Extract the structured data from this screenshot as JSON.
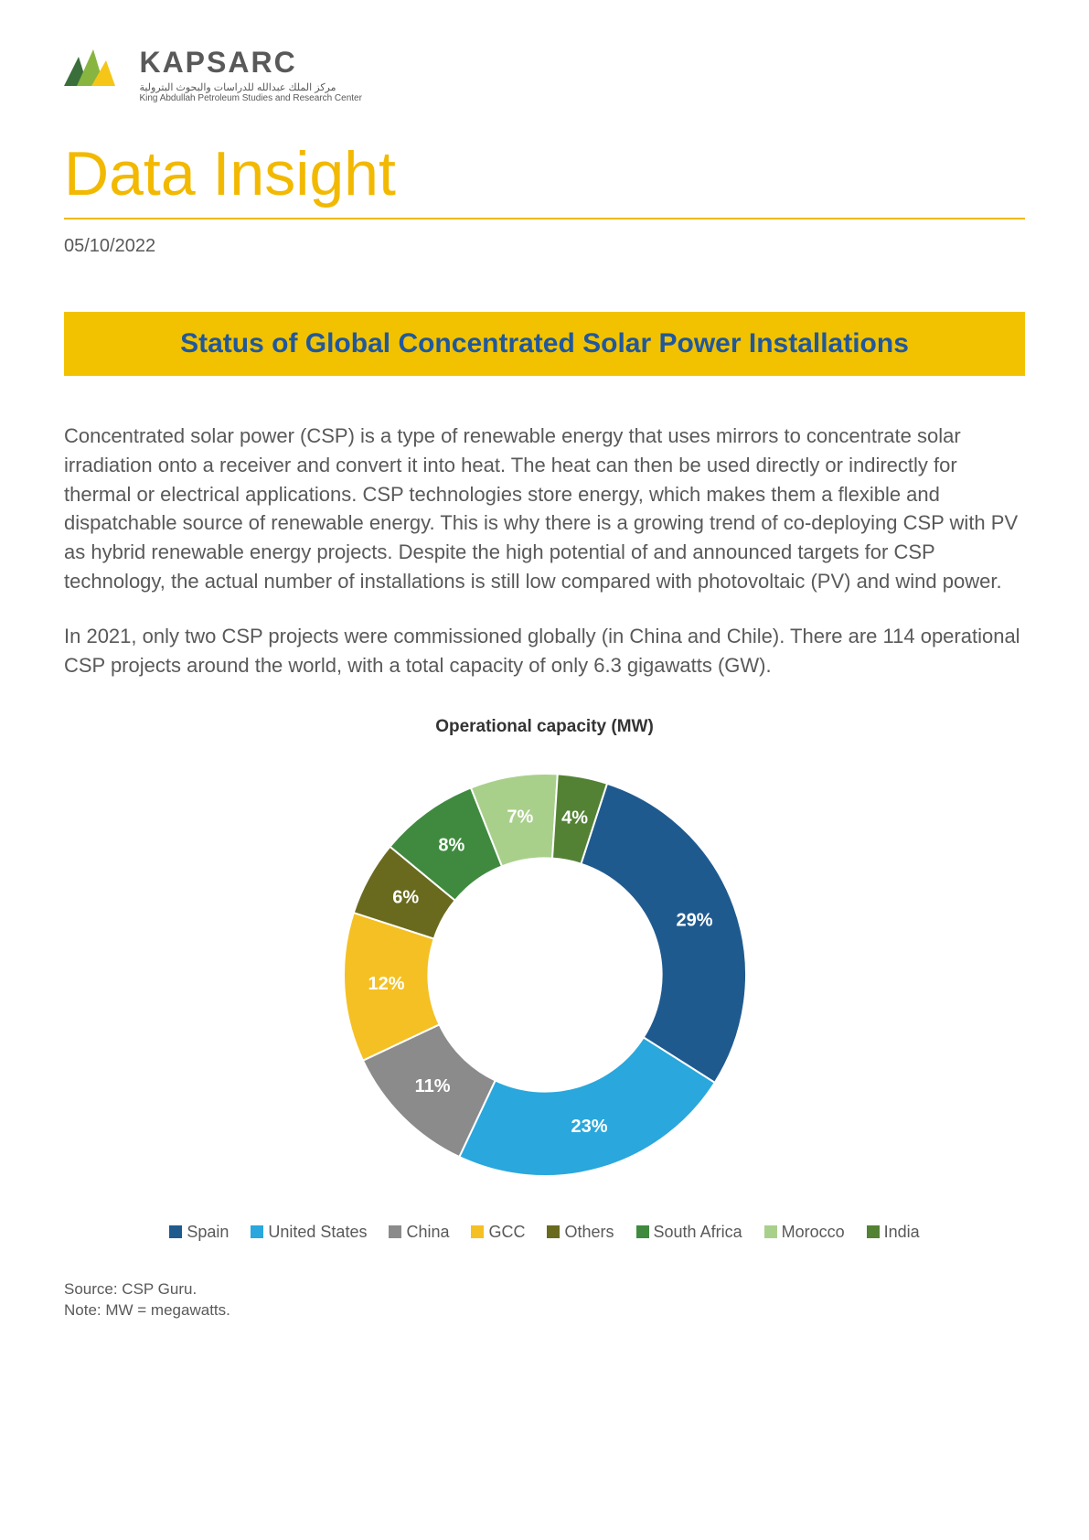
{
  "logo": {
    "brand": "KAPSARC",
    "tagline_ar": "مركز الملك عبدالله للدراسات والبحوث البترولية",
    "tagline_en": "King Abdullah Petroleum Studies and Research Center",
    "colors": {
      "text": "#595959",
      "green_dark": "#3a6e3a",
      "green_light": "#87b540",
      "yellow": "#f5c518"
    }
  },
  "page_title": {
    "text": "Data Insight",
    "color": "#f2b900",
    "border_color": "#f2b900",
    "fontsize": 68
  },
  "date": "05/10/2022",
  "banner": {
    "text": "Status of Global Concentrated Solar Power Installations",
    "bg_color": "#f2c200",
    "text_color": "#21589c",
    "fontsize": 30
  },
  "paragraphs": [
    "Concentrated solar power (CSP) is a type of renewable energy that uses mirrors to concentrate solar irradiation onto a receiver and convert it into heat. The heat can then be used directly or indirectly for thermal or electrical applications. CSP technologies store energy, which makes them a flexible and dispatchable source of renewable energy. This is why there is a growing trend of co-deploying CSP with PV as hybrid renewable energy projects. Despite the high potential of and announced targets for CSP technology, the actual number of installations is still low compared with photovoltaic (PV) and wind power.",
    "In 2021, only two CSP projects were commissioned globally (in China and Chile). There are 114 operational CSP projects around the world, with a total capacity of only 6.3 gigawatts (GW)."
  ],
  "chart": {
    "type": "donut",
    "title": "Operational capacity (MW)",
    "title_fontsize": 19,
    "title_color": "#333333",
    "inner_radius_ratio": 0.58,
    "outer_radius": 220,
    "label_color": "#ffffff",
    "label_fontsize": 20,
    "label_fontweight": "bold",
    "start_angle_deg": 18,
    "segments": [
      {
        "label": "Spain",
        "value": 29,
        "color": "#1f5a8f",
        "display": "29%"
      },
      {
        "label": "United States",
        "value": 23,
        "color": "#2aa7dc",
        "display": "23%"
      },
      {
        "label": "China",
        "value": 11,
        "color": "#8b8b8b",
        "display": "11%"
      },
      {
        "label": "GCC",
        "value": 12,
        "color": "#f5c023",
        "display": "12%"
      },
      {
        "label": "Others",
        "value": 6,
        "color": "#6a6a1f",
        "display": "6%"
      },
      {
        "label": "South Africa",
        "value": 8,
        "color": "#3f8a3f",
        "display": "8%"
      },
      {
        "label": "Morocco",
        "value": 7,
        "color": "#a9d08b",
        "display": "7%"
      },
      {
        "label": "India",
        "value": 4,
        "color": "#548235",
        "display": "4%"
      }
    ],
    "background_color": "#ffffff"
  },
  "footnote": {
    "source": "Source: CSP Guru.",
    "note": "Note: MW = megawatts."
  }
}
